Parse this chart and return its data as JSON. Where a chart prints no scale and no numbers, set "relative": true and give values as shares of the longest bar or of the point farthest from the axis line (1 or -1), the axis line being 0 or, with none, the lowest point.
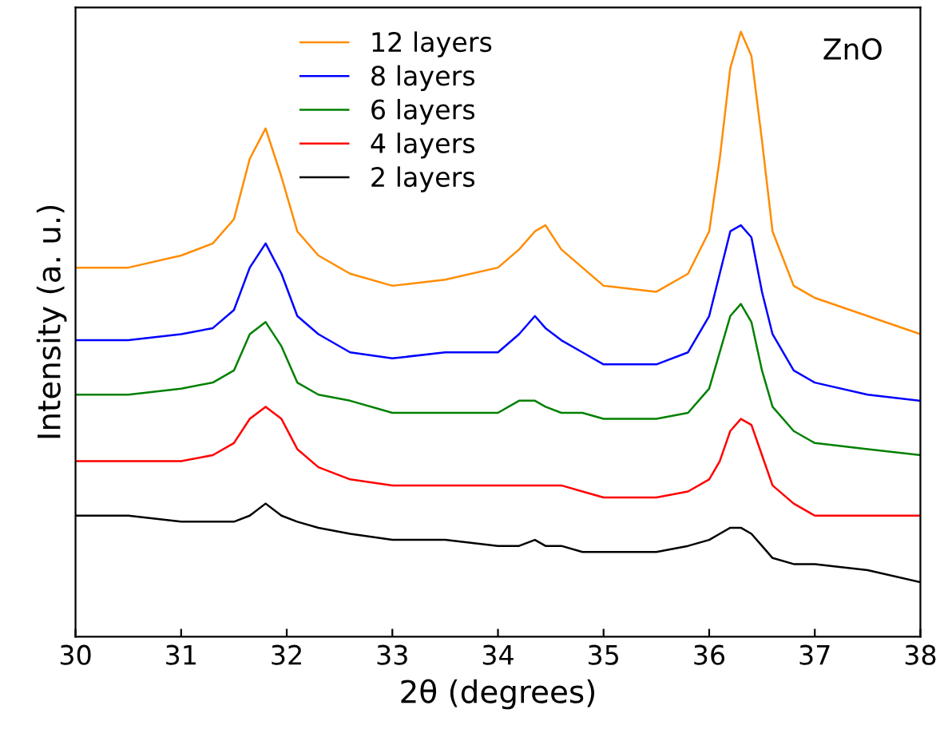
{
  "chart_data": {
    "type": "line",
    "relative": true,
    "xlabel": "2θ (degrees)",
    "ylabel": "Intensity (a. u.)",
    "x": [
      30,
      30.5,
      31,
      31.3,
      31.5,
      31.65,
      31.8,
      31.95,
      32.1,
      32.3,
      32.6,
      33,
      33.5,
      34,
      34.2,
      34.35,
      34.45,
      34.6,
      34.8,
      35,
      35.5,
      35.8,
      36,
      36.1,
      36.2,
      36.3,
      36.4,
      36.5,
      36.6,
      36.8,
      37,
      37.5,
      38
    ],
    "xlim": [
      30,
      38
    ],
    "xticks": [
      30,
      31,
      32,
      33,
      34,
      35,
      36,
      37,
      38
    ],
    "grid": false,
    "legend": "top",
    "line_style": "solid",
    "marker": "none",
    "annotations": [
      "ZnO"
    ],
    "series": [
      {
        "name": "12 layers",
        "color": "#ff8c00",
        "values": [
          0.61,
          0.61,
          0.63,
          0.65,
          0.69,
          0.79,
          0.84,
          0.76,
          0.67,
          0.63,
          0.6,
          0.58,
          0.59,
          0.61,
          0.64,
          0.67,
          0.68,
          0.64,
          0.61,
          0.58,
          0.57,
          0.6,
          0.67,
          0.79,
          0.94,
          1,
          0.96,
          0.82,
          0.67,
          0.58,
          0.56,
          0.53,
          0.5
        ]
      },
      {
        "name": "8 layers",
        "color": "#0000ff",
        "values": [
          0.49,
          0.49,
          0.5,
          0.51,
          0.54,
          0.61,
          0.65,
          0.6,
          0.53,
          0.5,
          0.47,
          0.46,
          0.47,
          0.47,
          0.5,
          0.53,
          0.51,
          0.49,
          0.47,
          0.45,
          0.45,
          0.47,
          0.53,
          0.6,
          0.67,
          0.68,
          0.66,
          0.57,
          0.5,
          0.44,
          0.42,
          0.4,
          0.39
        ]
      },
      {
        "name": "6 layers",
        "color": "#008000",
        "values": [
          0.4,
          0.4,
          0.41,
          0.42,
          0.44,
          0.5,
          0.52,
          0.48,
          0.42,
          0.4,
          0.39,
          0.37,
          0.37,
          0.37,
          0.39,
          0.39,
          0.38,
          0.37,
          0.37,
          0.36,
          0.36,
          0.37,
          0.41,
          0.47,
          0.53,
          0.55,
          0.52,
          0.44,
          0.38,
          0.34,
          0.32,
          0.31,
          0.3
        ]
      },
      {
        "name": "4 layers",
        "color": "#ff0000",
        "values": [
          0.29,
          0.29,
          0.29,
          0.3,
          0.32,
          0.36,
          0.38,
          0.36,
          0.31,
          0.28,
          0.26,
          0.25,
          0.25,
          0.25,
          0.25,
          0.25,
          0.25,
          0.25,
          0.24,
          0.23,
          0.23,
          0.24,
          0.26,
          0.29,
          0.34,
          0.36,
          0.35,
          0.3,
          0.25,
          0.22,
          0.2,
          0.2,
          0.2
        ]
      },
      {
        "name": "2 layers",
        "color": "#000000",
        "values": [
          0.2,
          0.2,
          0.19,
          0.19,
          0.19,
          0.2,
          0.22,
          0.2,
          0.19,
          0.18,
          0.17,
          0.16,
          0.16,
          0.15,
          0.15,
          0.16,
          0.15,
          0.15,
          0.14,
          0.14,
          0.14,
          0.15,
          0.16,
          0.17,
          0.18,
          0.18,
          0.17,
          0.15,
          0.13,
          0.12,
          0.12,
          0.11,
          0.09
        ]
      }
    ]
  }
}
